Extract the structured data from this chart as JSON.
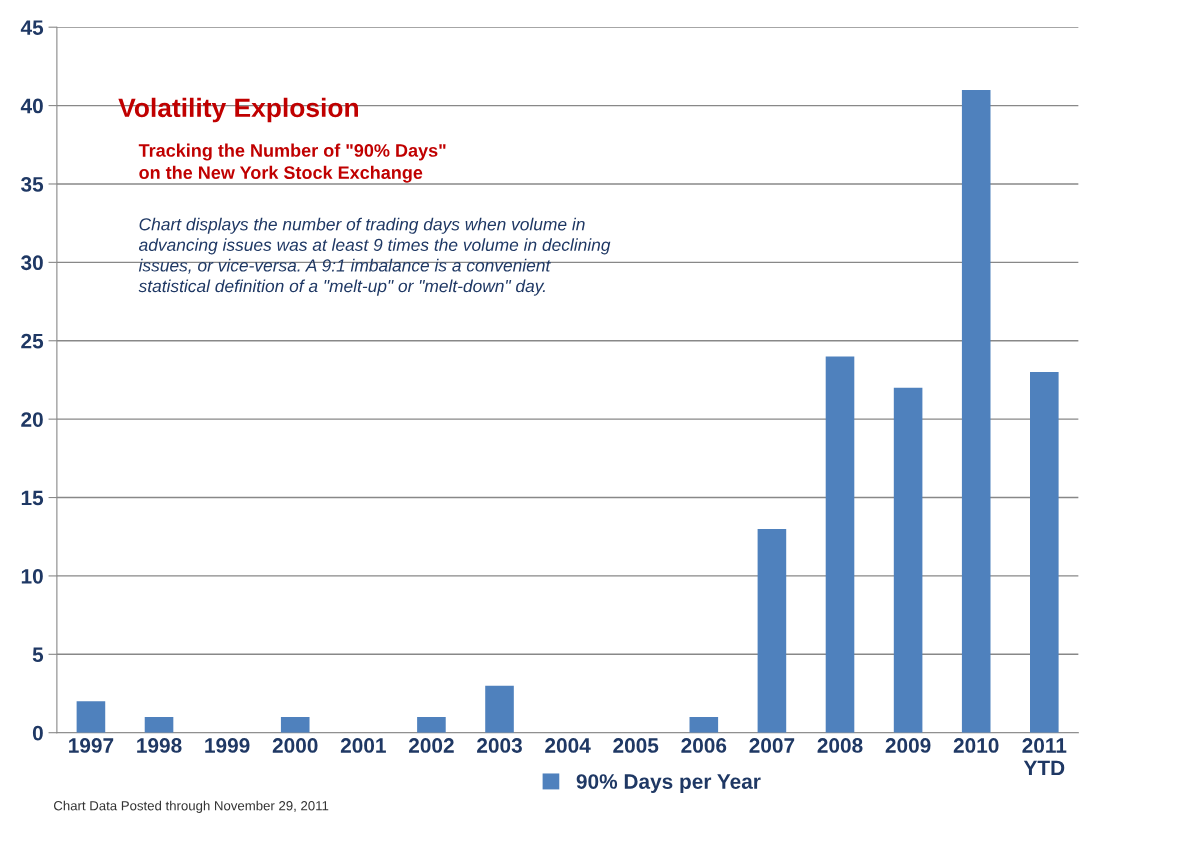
{
  "chart_data": {
    "type": "bar",
    "title": "Volatility Explosion",
    "subtitle": "Tracking the Number of \"90% Days\"\non the New York Stock Exchange",
    "categories": [
      "1997",
      "1998",
      "1999",
      "2000",
      "2001",
      "2002",
      "2003",
      "2004",
      "2005",
      "2006",
      "2007",
      "2008",
      "2009",
      "2010",
      "2011\nYTD"
    ],
    "series": [
      {
        "name": "90% Days per Year",
        "color": "#4f81bd",
        "values": [
          2,
          1,
          0,
          1,
          0,
          1,
          3,
          0,
          0,
          1,
          13,
          24,
          22,
          41,
          23
        ]
      }
    ],
    "ylim": [
      0,
      45
    ],
    "yticks": [
      0,
      5,
      10,
      15,
      20,
      25,
      30,
      35,
      40,
      45
    ],
    "grid": "y",
    "legend": "bottom",
    "annotations": [
      "Chart displays the number of trading days when volume in\nadvancing issues was at least 9 times the volume in declining\nissues, or vice-versa. A 9:1 imbalance is a convenient\nstatistical definition of a \"melt-up\" or \"melt-down\" day.",
      "Chart Data Posted through November 29, 2011"
    ]
  }
}
